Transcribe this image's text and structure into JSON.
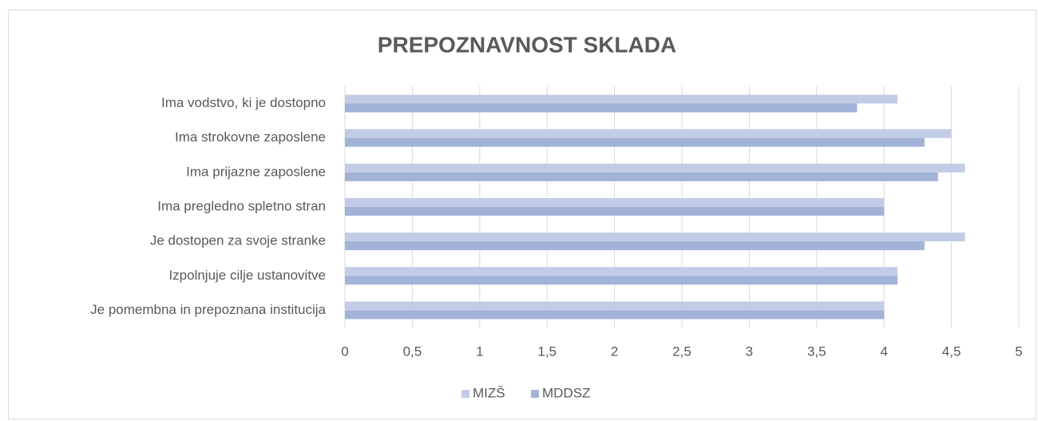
{
  "chart_data": {
    "type": "hbar",
    "title": "PREPOZNAVNOST SKLADA",
    "categories": [
      "Ima vodstvo, ki je dostopno",
      "Ima strokovne zaposlene",
      "Ima prijazne zaposlene",
      "Ima pregledno spletno stran",
      "Je dostopen za svoje stranke",
      "Izpolnjuje cilje ustanovitve",
      "Je pomembna in prepoznana institucija"
    ],
    "series": [
      {
        "name": "MIZŠ",
        "color": "#c3cce6",
        "values": [
          4.1,
          4.5,
          4.6,
          4.0,
          4.6,
          4.1,
          4.0
        ]
      },
      {
        "name": "MDDSZ",
        "color": "#a3b2d8",
        "values": [
          3.8,
          4.3,
          4.4,
          4.0,
          4.3,
          4.1,
          4.0
        ]
      }
    ],
    "xlim": [
      0,
      5
    ],
    "xticks": [
      0,
      {
        "value": 0.5,
        "label": "0,5"
      },
      1,
      {
        "value": 1.5,
        "label": "1,5"
      },
      2,
      {
        "value": 2.5,
        "label": "2,5"
      },
      3,
      {
        "value": 3.5,
        "label": "3,5"
      },
      4,
      {
        "value": 4.5,
        "label": "4,5"
      },
      5
    ],
    "grid": true,
    "legend": "bottom"
  }
}
